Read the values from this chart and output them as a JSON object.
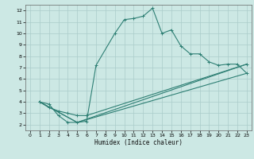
{
  "xlabel": "Humidex (Indice chaleur)",
  "bg_color": "#cce8e4",
  "grid_color": "#aaccca",
  "line_color": "#2e7f74",
  "xlim": [
    -0.5,
    23.5
  ],
  "ylim": [
    1.5,
    12.5
  ],
  "xticks": [
    0,
    1,
    2,
    3,
    4,
    5,
    6,
    7,
    8,
    9,
    10,
    11,
    12,
    13,
    14,
    15,
    16,
    17,
    18,
    19,
    20,
    21,
    22,
    23
  ],
  "yticks": [
    2,
    3,
    4,
    5,
    6,
    7,
    8,
    9,
    10,
    11,
    12
  ],
  "line1_x": [
    1,
    2,
    3,
    4,
    5,
    6,
    7,
    9,
    10,
    11,
    12,
    13,
    14,
    15,
    16,
    17,
    18,
    19,
    20,
    21,
    22,
    23
  ],
  "line1_y": [
    4.0,
    3.8,
    2.8,
    2.2,
    2.2,
    2.3,
    7.2,
    10.0,
    11.2,
    11.3,
    11.5,
    12.2,
    10.0,
    10.3,
    8.9,
    8.2,
    8.2,
    7.5,
    7.2,
    7.3,
    7.3,
    6.5
  ],
  "line2_x": [
    1,
    2,
    3,
    4,
    5,
    6,
    23
  ],
  "line2_y": [
    4.0,
    3.5,
    3.2,
    3.0,
    2.8,
    2.8,
    7.3
  ],
  "line3_x": [
    1,
    5,
    23
  ],
  "line3_y": [
    4.0,
    2.2,
    6.5
  ],
  "line4_x": [
    1,
    5,
    23
  ],
  "line4_y": [
    4.0,
    2.2,
    7.3
  ]
}
